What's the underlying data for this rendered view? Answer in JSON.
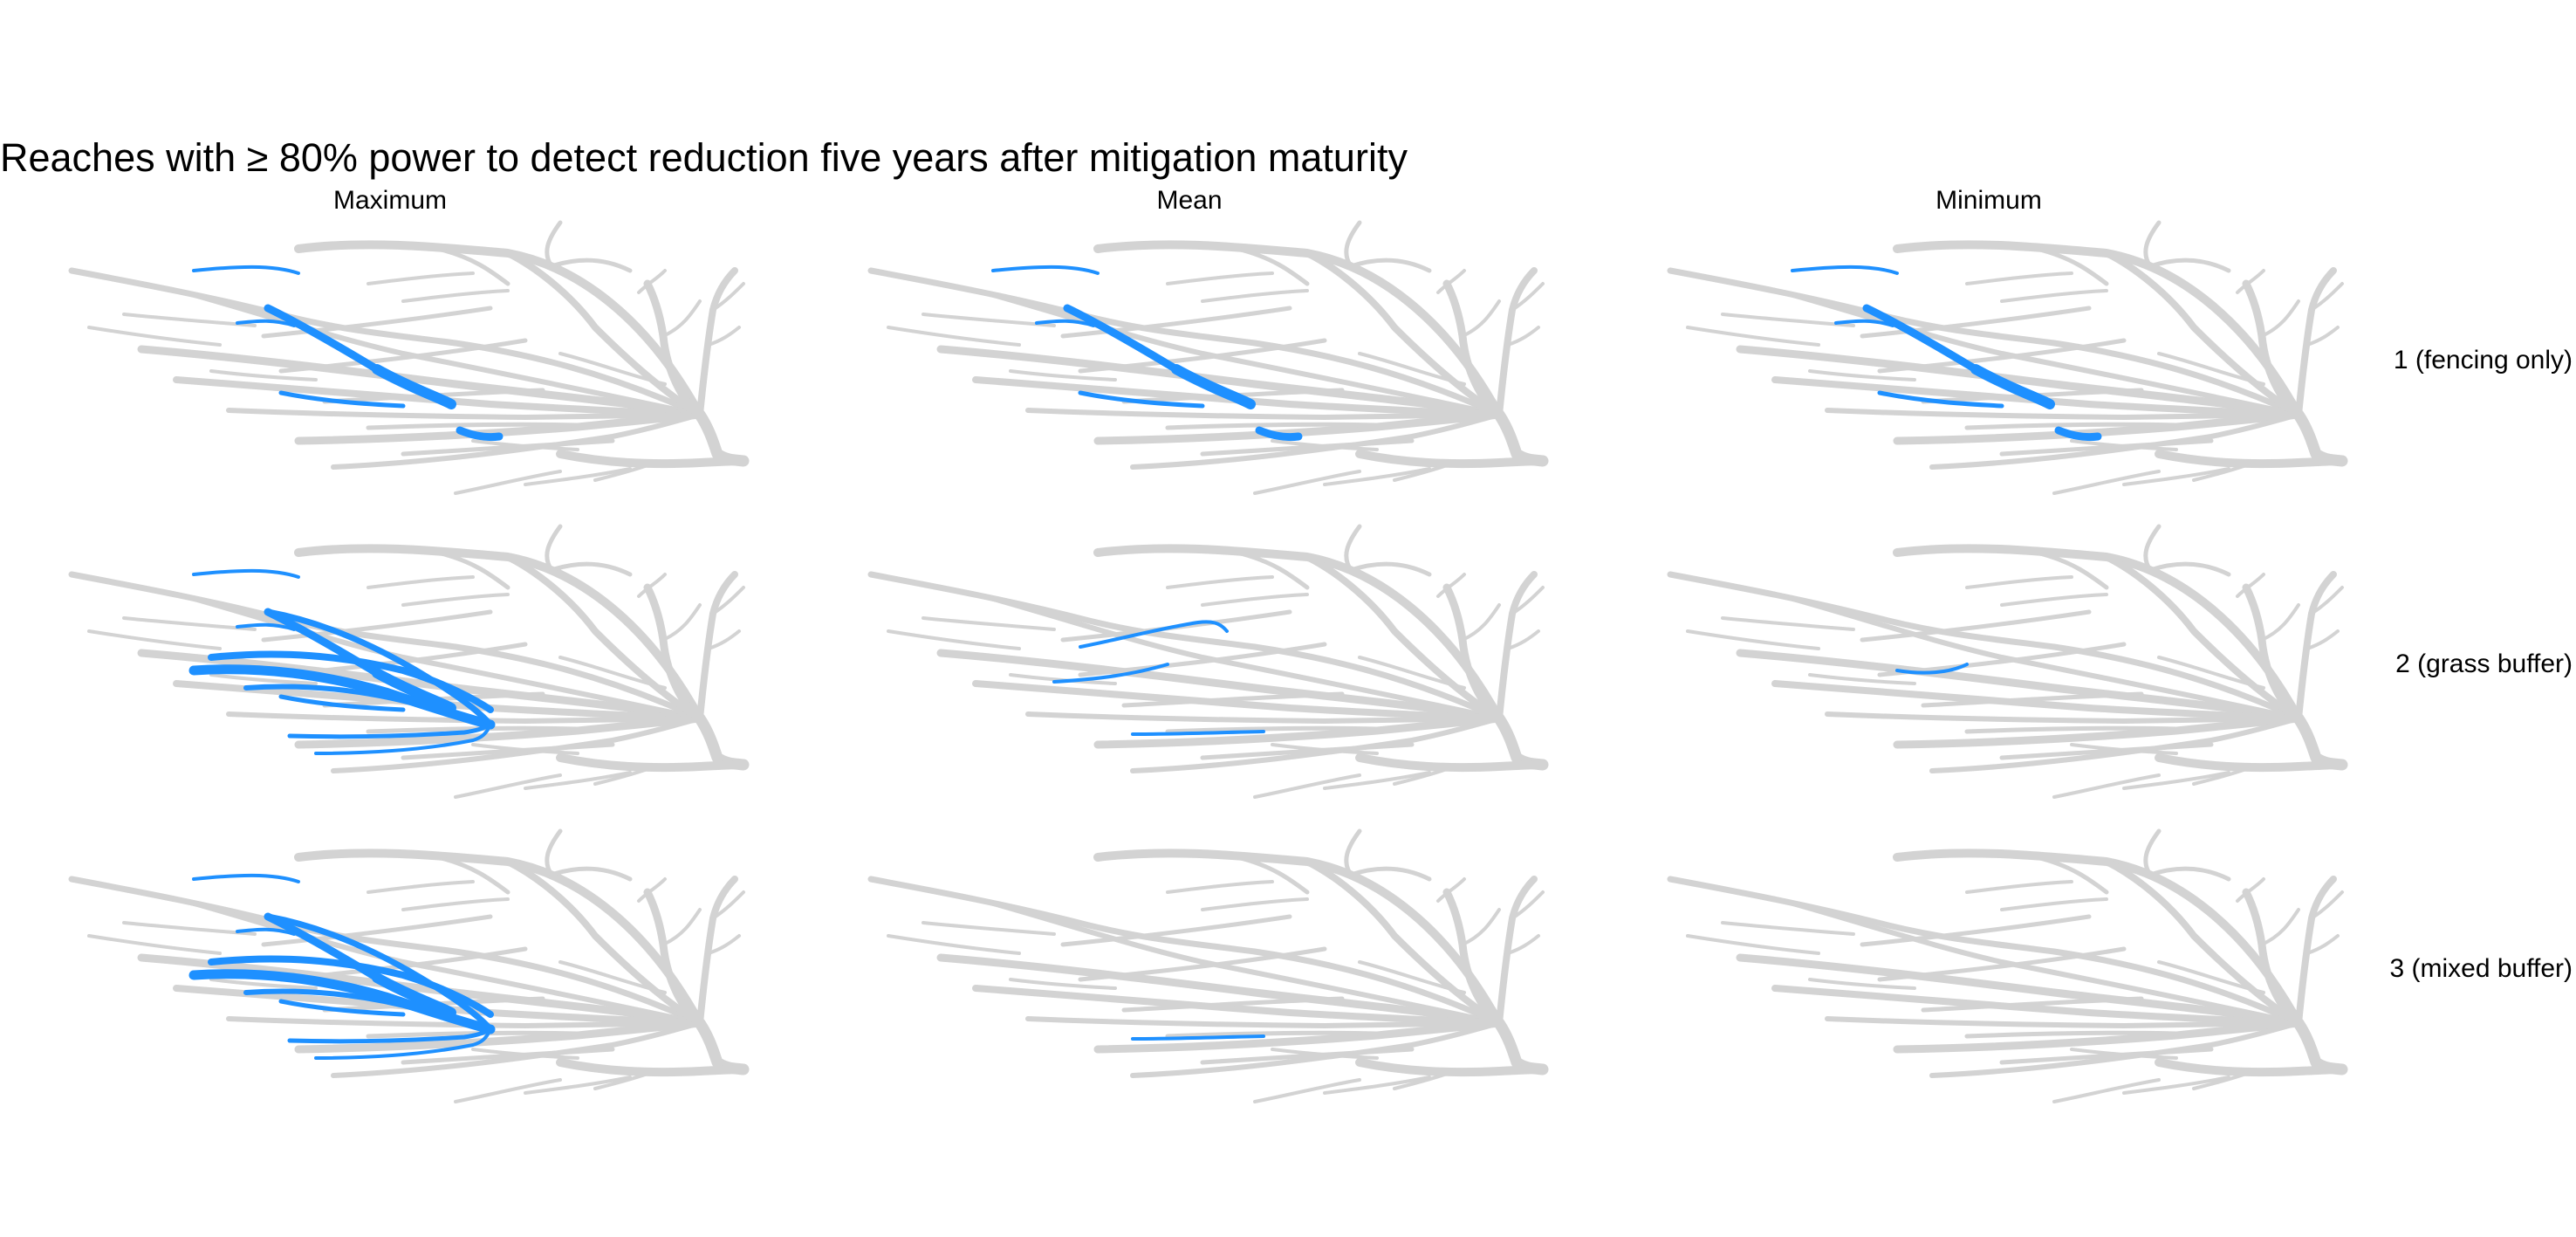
{
  "title": "Reaches with ≥ 80% power to detect reduction five years after mitigation maturity",
  "columns": [
    "Maximum",
    "Mean",
    "Minimum"
  ],
  "rows": [
    "1 (fencing only)",
    "2 (grass buffer)",
    "3 (mixed buffer)"
  ],
  "colors": {
    "network": "#d3d3d3",
    "highlight": "#1e90ff"
  },
  "chart_data": {
    "type": "small-multiple river network maps",
    "facet_columns": [
      "Maximum",
      "Mean",
      "Minimum"
    ],
    "facet_rows": [
      "1 (fencing only)",
      "2 (grass buffer)",
      "3 (mixed buffer)"
    ],
    "highlighted_reaches": {
      "1 (fencing only)": {
        "Maximum": [
          "r1",
          "r2",
          "r3",
          "r4",
          "r5",
          "r6"
        ],
        "Mean": [
          "r1",
          "r2",
          "r3",
          "r4",
          "r5",
          "r6"
        ],
        "Minimum": [
          "r1",
          "r2",
          "r3",
          "r4",
          "r5",
          "r6"
        ]
      },
      "2 (grass buffer)": {
        "Maximum": [
          "r1",
          "r2",
          "r3",
          "r4",
          "r5",
          "r7",
          "r8",
          "r9",
          "r10",
          "r11",
          "r12"
        ],
        "Mean": [
          "r13",
          "r14",
          "r15"
        ],
        "Minimum": [
          "r16"
        ]
      },
      "3 (mixed buffer)": {
        "Maximum": [
          "r1",
          "r2",
          "r3",
          "r4",
          "r5",
          "r7",
          "r8",
          "r9",
          "r10",
          "r11",
          "r12"
        ],
        "Mean": [
          "r15"
        ],
        "Minimum": []
      }
    }
  }
}
